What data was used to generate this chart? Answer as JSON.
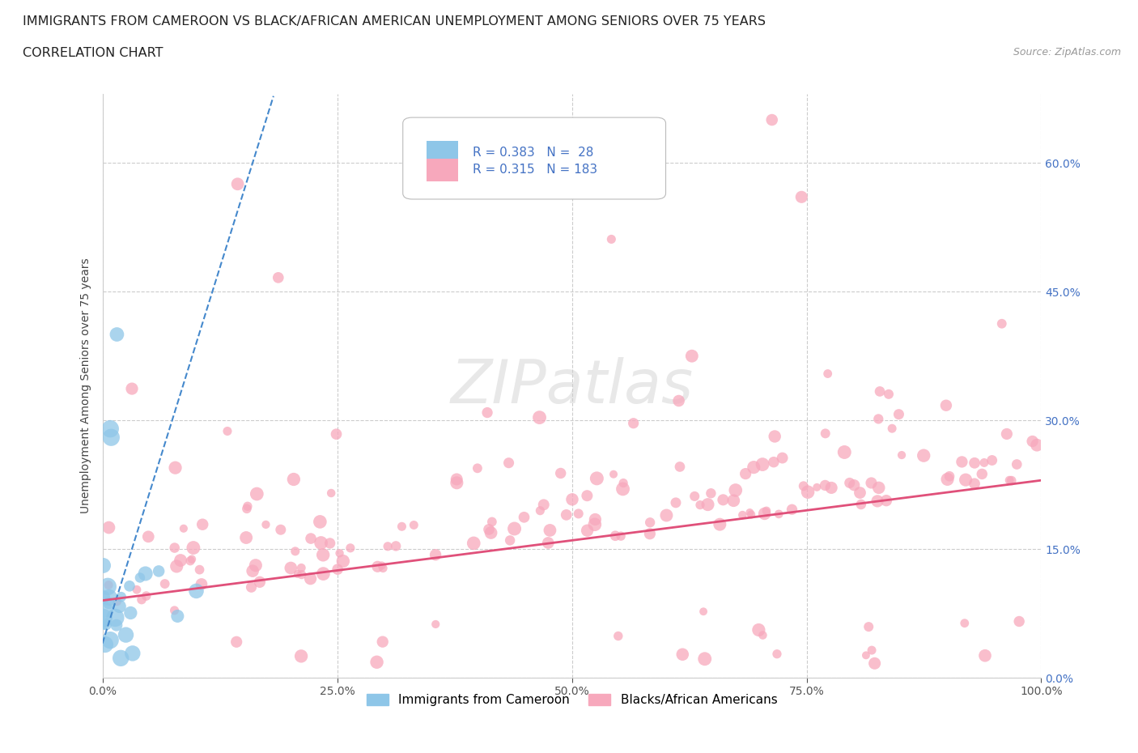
{
  "title_line1": "IMMIGRANTS FROM CAMEROON VS BLACK/AFRICAN AMERICAN UNEMPLOYMENT AMONG SENIORS OVER 75 YEARS",
  "title_line2": "CORRELATION CHART",
  "source_text": "Source: ZipAtlas.com",
  "ylabel": "Unemployment Among Seniors over 75 years",
  "legend_label_blue": "Immigrants from Cameroon",
  "legend_label_pink": "Blacks/African Americans",
  "R_blue": 0.383,
  "N_blue": 28,
  "R_pink": 0.315,
  "N_pink": 183,
  "color_blue": "#8ec6e8",
  "color_pink": "#f7a8bc",
  "color_trend_blue": "#4488cc",
  "color_trend_pink": "#e0507a",
  "xlim": [
    0.0,
    1.0
  ],
  "ylim": [
    0.0,
    0.68
  ],
  "ytick_vals": [
    0.0,
    0.15,
    0.3,
    0.45,
    0.6
  ],
  "ytick_labels": [
    "0.0%",
    "15.0%",
    "30.0%",
    "45.0%",
    "60.0%"
  ],
  "xtick_vals": [
    0.0,
    0.25,
    0.5,
    0.75,
    1.0
  ],
  "xtick_labels": [
    "0.0%",
    "25.0%",
    "50.0%",
    "75.0%",
    "100.0%"
  ],
  "watermark_text": "ZIPatlas",
  "background_color": "#ffffff",
  "grid_color": "#cccccc",
  "title_fontsize": 11.5,
  "subtitle_fontsize": 11.5,
  "axis_label_fontsize": 10,
  "tick_fontsize": 10,
  "legend_fontsize": 11,
  "right_tick_color": "#4472c4",
  "bottom_tick_color": "#555555"
}
